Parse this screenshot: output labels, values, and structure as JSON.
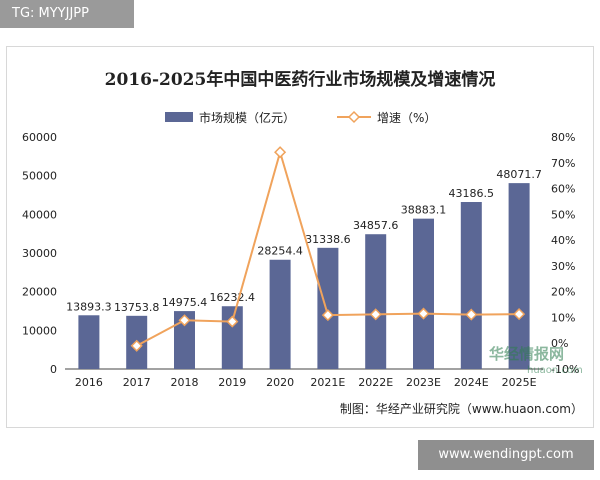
{
  "tag": "TG: MYYJJPP",
  "bottom_badge": "www.wendingpt.com",
  "source": "制图：华经产业研究院（www.huaon.com）",
  "watermark": {
    "text": "华经情报网",
    "sub": "huaon.com"
  },
  "colors": {
    "bar": "#5b6795",
    "line": "#f0a35c",
    "marker_fill": "#ffffff"
  },
  "chart_data": {
    "type": "bar+line",
    "title": "2016-2025年中国中医药行业市场规模及增速情况",
    "categories": [
      "2016",
      "2017",
      "2018",
      "2019",
      "2020",
      "2021E",
      "2022E",
      "2023E",
      "2024E",
      "2025E"
    ],
    "series": [
      {
        "name": "市场规模（亿元）",
        "type": "bar",
        "axis": "left",
        "values": [
          13893.3,
          13753.8,
          14975.4,
          16232.4,
          28254.4,
          31338.6,
          34857.6,
          38883.1,
          43186.5,
          48071.7
        ],
        "labels": [
          "13893.3",
          "13753.8",
          "14975.4",
          "16232.4",
          "28254.4",
          "31338.6",
          "34857.6",
          "38883.1",
          "43186.5",
          "48071.7"
        ]
      },
      {
        "name": "增速（%）",
        "type": "line",
        "axis": "right",
        "values": [
          null,
          -1.0,
          8.9,
          8.4,
          74.1,
          10.9,
          11.2,
          11.5,
          11.1,
          11.3
        ]
      }
    ],
    "y_left": {
      "lim": [
        0,
        60000
      ],
      "ticks": [
        "0",
        "10000",
        "20000",
        "30000",
        "40000",
        "50000",
        "60000"
      ]
    },
    "y_right": {
      "lim": [
        -10,
        80
      ],
      "ticks": [
        "-10%",
        "0%",
        "10%",
        "20%",
        "30%",
        "40%",
        "50%",
        "60%",
        "70%",
        "80%"
      ]
    },
    "grid": false,
    "legend": "top-center"
  }
}
